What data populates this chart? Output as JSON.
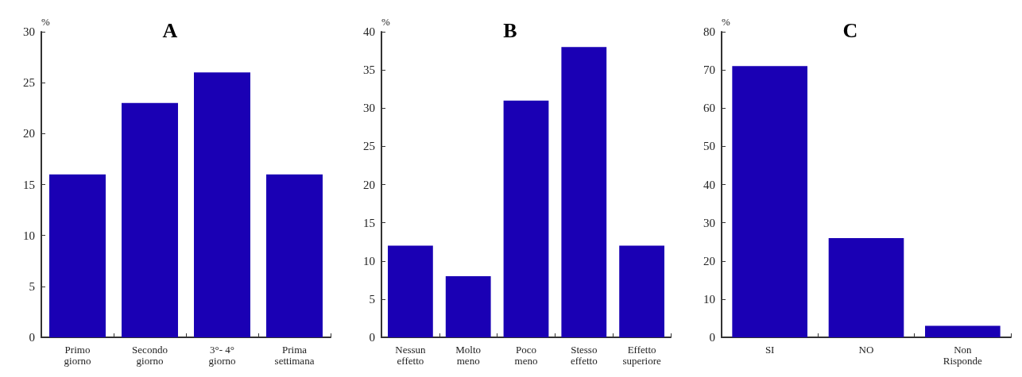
{
  "chart_data": [
    {
      "type": "bar",
      "title": "A",
      "ylabel": "%",
      "categories": [
        "Primo\ngiorno",
        "Secondo\ngiorno",
        "3°- 4°\ngiorno",
        "Prima\nsettimana"
      ],
      "values": [
        16,
        23,
        26,
        16
      ],
      "color": "#1a00b4",
      "ylim": [
        0,
        30
      ],
      "yticks": [
        0,
        5,
        10,
        15,
        20,
        25,
        30
      ],
      "grid": false
    },
    {
      "type": "bar",
      "title": "B",
      "ylabel": "%",
      "categories": [
        "Nessun\neffetto",
        "Molto\nmeno",
        "Poco\nmeno",
        "Stesso\neffetto",
        "Effetto\nsuperiore"
      ],
      "values": [
        12,
        8,
        31,
        38,
        12
      ],
      "color": "#1a00b4",
      "ylim": [
        0,
        40
      ],
      "yticks": [
        0,
        5,
        10,
        15,
        20,
        25,
        30,
        35,
        40
      ],
      "grid": false
    },
    {
      "type": "bar",
      "title": "C",
      "ylabel": "%",
      "categories": [
        "SI",
        "NO",
        "Non\nRisponde"
      ],
      "values": [
        71,
        26,
        3
      ],
      "color": "#1a00b4",
      "ylim": [
        0,
        80
      ],
      "yticks": [
        0,
        10,
        20,
        30,
        40,
        50,
        60,
        70,
        80
      ],
      "grid": false
    }
  ]
}
